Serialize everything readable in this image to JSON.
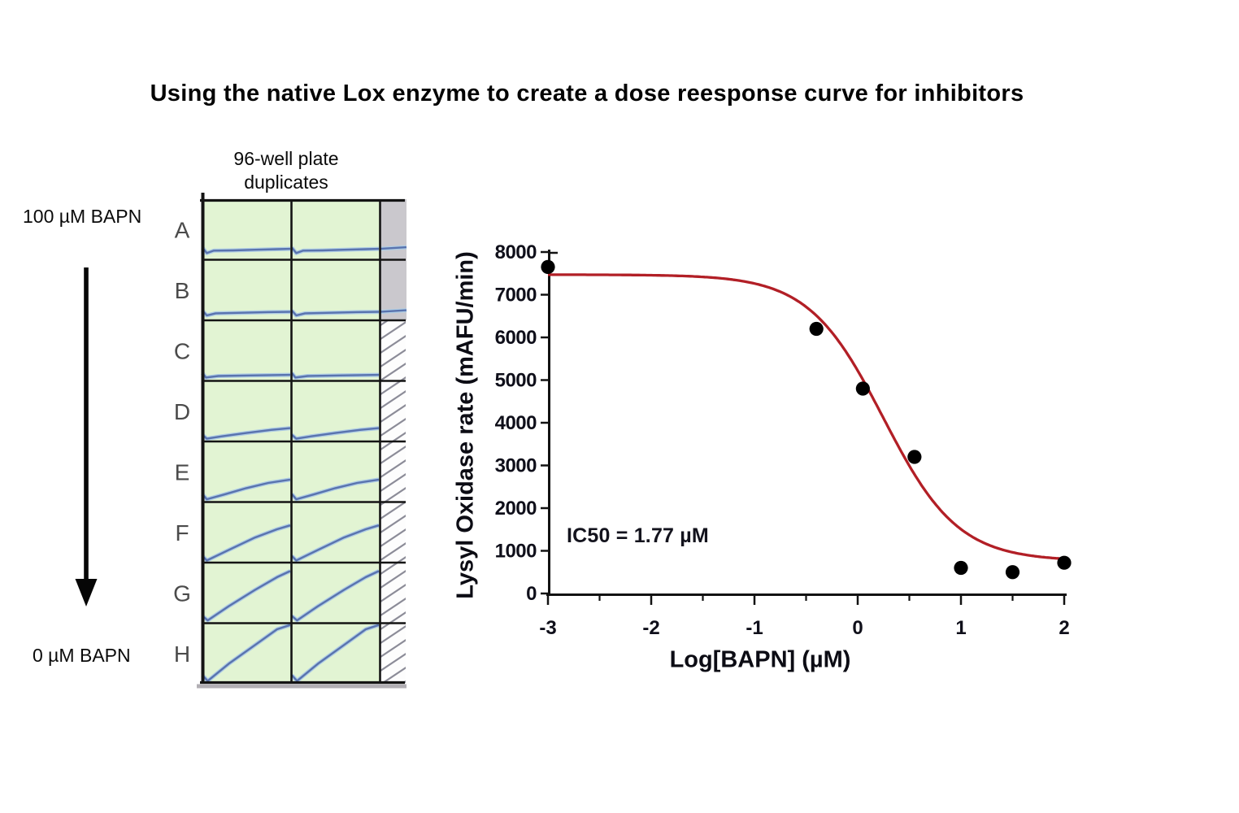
{
  "title": "Using the native Lox enzyme to create a dose reesponse curve for inhibitors",
  "plate": {
    "heading_line1": "96-well plate",
    "heading_line2": "duplicates",
    "top_label": "100 µM BAPN",
    "bottom_label": "0 µM BAPN",
    "row_labels": [
      "A",
      "B",
      "C",
      "D",
      "E",
      "F",
      "G",
      "H"
    ],
    "colors": {
      "well_fill": "#e2f4d3",
      "excluded_fill": "#cac8cd",
      "hatch_line": "#8c8c98",
      "grid_line": "#141414",
      "trace": "#5973ae",
      "trace_halo": "#aecce4",
      "shadow": "#b2afb4"
    },
    "traces": [
      {
        "row": "A",
        "points": [
          [
            0,
            0.8
          ],
          [
            0.05,
            0.89
          ],
          [
            0.13,
            0.85
          ],
          [
            0.35,
            0.845
          ],
          [
            0.6,
            0.835
          ],
          [
            0.85,
            0.825
          ],
          [
            1,
            0.82
          ]
        ],
        "extends_into_col3": true
      },
      {
        "row": "B",
        "points": [
          [
            0,
            0.84
          ],
          [
            0.05,
            0.92
          ],
          [
            0.15,
            0.885
          ],
          [
            0.45,
            0.875
          ],
          [
            0.75,
            0.865
          ],
          [
            1,
            0.86
          ]
        ],
        "extends_into_col3": true
      },
      {
        "row": "C",
        "points": [
          [
            0,
            0.87
          ],
          [
            0.04,
            0.945
          ],
          [
            0.18,
            0.92
          ],
          [
            0.55,
            0.91
          ],
          [
            1,
            0.9
          ]
        ],
        "extends_into_col3": false
      },
      {
        "row": "D",
        "points": [
          [
            0,
            0.89
          ],
          [
            0.05,
            0.955
          ],
          [
            0.22,
            0.915
          ],
          [
            0.5,
            0.86
          ],
          [
            0.78,
            0.81
          ],
          [
            1,
            0.78
          ]
        ],
        "extends_into_col3": false
      },
      {
        "row": "E",
        "points": [
          [
            0,
            0.87
          ],
          [
            0.05,
            0.955
          ],
          [
            0.25,
            0.875
          ],
          [
            0.5,
            0.77
          ],
          [
            0.75,
            0.685
          ],
          [
            1,
            0.63
          ]
        ],
        "extends_into_col3": false
      },
      {
        "row": "F",
        "points": [
          [
            0,
            0.89
          ],
          [
            0.05,
            0.965
          ],
          [
            0.3,
            0.79
          ],
          [
            0.6,
            0.585
          ],
          [
            0.85,
            0.45
          ],
          [
            1,
            0.385
          ]
        ],
        "extends_into_col3": false
      },
      {
        "row": "G",
        "points": [
          [
            0,
            0.88
          ],
          [
            0.06,
            0.955
          ],
          [
            0.3,
            0.72
          ],
          [
            0.6,
            0.45
          ],
          [
            0.85,
            0.24
          ],
          [
            1,
            0.14
          ]
        ],
        "extends_into_col3": false
      },
      {
        "row": "H",
        "points": [
          [
            0,
            0.86
          ],
          [
            0.06,
            0.955
          ],
          [
            0.3,
            0.67
          ],
          [
            0.6,
            0.36
          ],
          [
            0.85,
            0.1
          ],
          [
            1,
            0.03
          ]
        ],
        "extends_into_col3": false
      }
    ]
  },
  "chart_data": {
    "type": "scatter",
    "title": "",
    "xlabel": "Log[BAPN] (µM)",
    "ylabel": "Lysyl Oxidase rate (mAFU/min)",
    "annotation": "IC50 = 1.77 µM",
    "ic50_um": 1.77,
    "xlim": [
      -3,
      2
    ],
    "ylim": [
      0,
      8000
    ],
    "x_ticks": [
      -3,
      -2,
      -1,
      0,
      1,
      2
    ],
    "x_minor_ticks": [
      -2.5,
      -1.5,
      -0.5,
      0.5,
      1.5
    ],
    "y_ticks": [
      0,
      1000,
      2000,
      3000,
      4000,
      5000,
      6000,
      7000,
      8000
    ],
    "grid": false,
    "legend": "none",
    "points": [
      {
        "x": -3,
        "y": 7650
      },
      {
        "x": -0.4,
        "y": 6200
      },
      {
        "x": 0.05,
        "y": 4800
      },
      {
        "x": 0.55,
        "y": 3200
      },
      {
        "x": 1.0,
        "y": 600
      },
      {
        "x": 1.5,
        "y": 500
      },
      {
        "x": 2.0,
        "y": 720
      }
    ],
    "fit_curve": {
      "model": "4PL-sigmoid",
      "top": 7470,
      "bottom": 760,
      "log_ic50": 0.248,
      "hill": 1.2
    },
    "colors": {
      "curve": "#b21f26",
      "points": "#000000",
      "axis": "#121212"
    }
  }
}
